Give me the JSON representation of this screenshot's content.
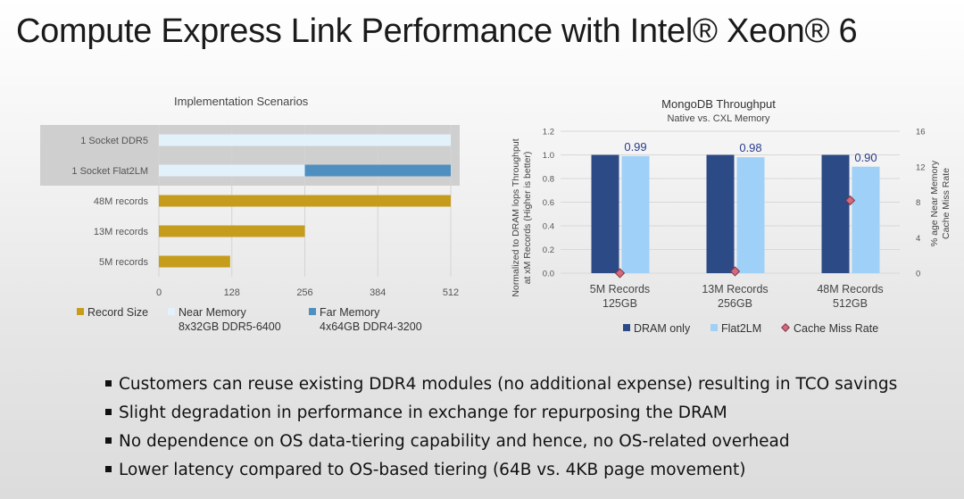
{
  "slide": {
    "title": "Compute Express Link Performance with Intel® Xeon® 6"
  },
  "bullets": [
    "Customers can reuse existing DDR4 modules (no additional expense) resulting in TCO savings",
    "Slight degradation in performance in exchange for repurposing the DRAM",
    "No dependence on OS data-tiering capability and hence, no OS-related overhead",
    "Lower latency compared to OS-based tiering (64B vs. 4KB page movement)"
  ],
  "colors": {
    "record_size": "#c69c1c",
    "near_memory": "#e3f1fb",
    "far_memory": "#4e8fc0",
    "dram_only": "#2c4a86",
    "flat2lm": "#9fd0f7",
    "cache_miss": "#cf6d7e",
    "value_label": "#2a3c8c"
  },
  "chart_data": [
    {
      "type": "bar",
      "orientation": "horizontal",
      "title": "Implementation Scenarios",
      "xlim": [
        0,
        512
      ],
      "xticks": [
        "0",
        "128",
        "256",
        "384",
        "512"
      ],
      "categories": [
        "1 Socket DDR5",
        "1 Socket Flat2LM",
        "48M records",
        "13M records",
        "5M records"
      ],
      "highlighted_categories": [
        "1 Socket DDR5",
        "1 Socket Flat2LM"
      ],
      "series": [
        {
          "name": "Record Size",
          "values": [
            0,
            0,
            512,
            256,
            125
          ]
        },
        {
          "name": "Near Memory",
          "values": [
            512,
            256,
            0,
            0,
            0
          ]
        },
        {
          "name": "Far Memory",
          "values": [
            0,
            256,
            0,
            0,
            0
          ]
        }
      ],
      "legend": [
        {
          "name": "Record Size",
          "sub": ""
        },
        {
          "name": "Near Memory",
          "sub": "8x32GB DDR5-6400"
        },
        {
          "name": "Far Memory",
          "sub": "4x64GB DDR4-3200"
        }
      ],
      "legend_position": "bottom",
      "grid": true
    },
    {
      "type": "bar",
      "title": "MongoDB Throughput",
      "subtitle": "Native vs. CXL Memory",
      "ylabel": "Normalized to DRAM lops Throughput at xM Records (Higher is better)",
      "y2label": "% age Near Memory Cache Miss Rate",
      "ylim": [
        0,
        1.2
      ],
      "yticks": [
        "0.0",
        "0.2",
        "0.4",
        "0.6",
        "0.8",
        "1.0",
        "1.2"
      ],
      "y2lim": [
        0,
        16
      ],
      "y2ticks": [
        "0",
        "4",
        "8",
        "12",
        "16"
      ],
      "categories": [
        {
          "line1": "5M Records",
          "line2": "125GB"
        },
        {
          "line1": "13M Records",
          "line2": "256GB"
        },
        {
          "line1": "48M Records",
          "line2": "512GB"
        }
      ],
      "series": [
        {
          "name": "DRAM only",
          "type": "bar",
          "values": [
            1.0,
            1.0,
            1.0
          ]
        },
        {
          "name": "Flat2LM",
          "type": "bar",
          "values": [
            0.99,
            0.98,
            0.9
          ],
          "labels": [
            "0.99",
            "0.98",
            "0.90"
          ]
        },
        {
          "name": "Cache Miss Rate",
          "type": "scatter",
          "axis": "y2",
          "values": [
            0,
            0.2,
            8.2
          ]
        }
      ],
      "legend_position": "bottom",
      "grid": true
    }
  ]
}
